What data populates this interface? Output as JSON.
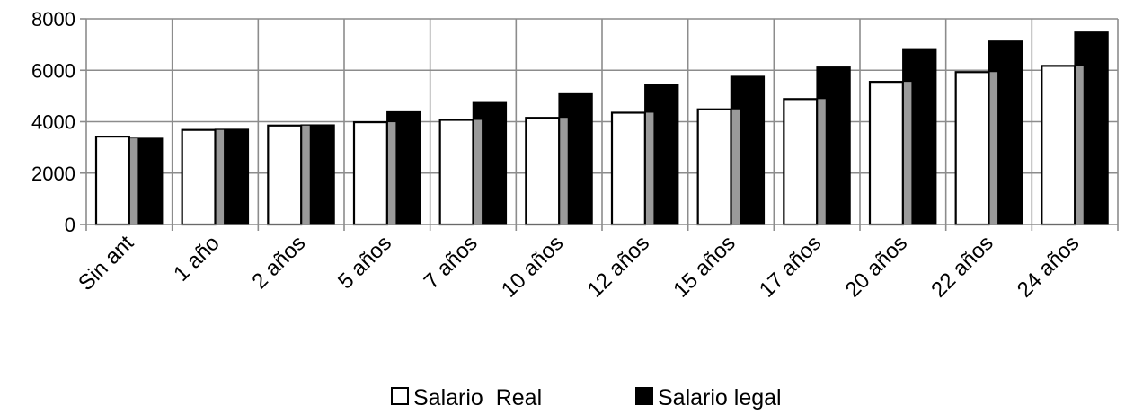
{
  "chart_data": {
    "type": "bar",
    "categories": [
      "Sin ant",
      "1 año",
      "2 años",
      "5 años",
      "7 años",
      "10 años",
      "12 años",
      "15 años",
      "17 años",
      "20 años",
      "22 años",
      "24 años"
    ],
    "series": [
      {
        "name": "Salario  Real",
        "color": "#ffffff",
        "values": [
          3420,
          3680,
          3850,
          3980,
          4070,
          4150,
          4350,
          4480,
          4880,
          5550,
          5930,
          6170
        ]
      },
      {
        "name": "Salario legal",
        "color": "#000000",
        "values": [
          3350,
          3700,
          3870,
          4380,
          4740,
          5080,
          5430,
          5760,
          6120,
          6800,
          7130,
          7480
        ]
      }
    ],
    "yticks": [
      "0",
      "2000",
      "4000",
      "6000",
      "8000"
    ],
    "ylim": [
      0,
      8000
    ],
    "grid": true,
    "legend_position": "bottom"
  }
}
